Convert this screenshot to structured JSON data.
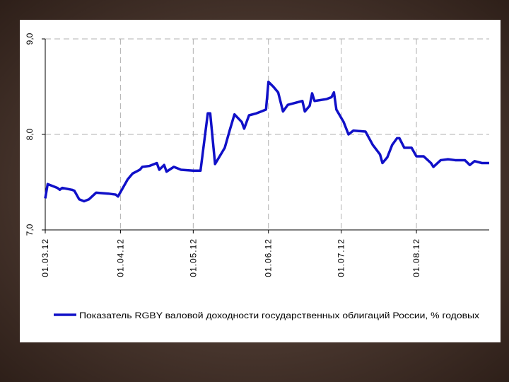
{
  "chart_data": {
    "type": "line",
    "x": [
      "01.03.12",
      "02.03.12",
      "06.03.12",
      "07.03.12",
      "08.03.12",
      "12.03.12",
      "13.03.12",
      "15.03.12",
      "17.03.12",
      "19.03.12",
      "22.03.12",
      "27.03.12",
      "30.03.12",
      "31.03.12",
      "04.04.12",
      "05.04.12",
      "06.04.12",
      "09.04.12",
      "10.04.12",
      "13.04.12",
      "16.04.12",
      "17.04.12",
      "19.04.12",
      "20.04.12",
      "23.04.12",
      "26.04.12",
      "01.05.12",
      "04.05.12",
      "07.05.12",
      "08.05.12",
      "10.05.12",
      "14.05.12",
      "16.05.12",
      "18.05.12",
      "21.05.12",
      "22.05.12",
      "24.05.12",
      "27.05.12",
      "29.05.12",
      "31.05.12",
      "01.06.12",
      "03.06.12",
      "05.06.12",
      "07.06.12",
      "09.06.12",
      "12.06.12",
      "15.06.12",
      "16.06.12",
      "18.06.12",
      "19.06.12",
      "20.06.12",
      "25.06.12",
      "27.06.12",
      "28.06.12",
      "29.06.12",
      "02.07.12",
      "04.07.12",
      "06.07.12",
      "11.07.12",
      "14.07.12",
      "17.07.12",
      "18.07.12",
      "20.07.12",
      "22.07.12",
      "24.07.12",
      "25.07.12",
      "27.07.12",
      "30.07.12",
      "01.08.12",
      "04.08.12",
      "07.08.12",
      "08.08.12",
      "11.08.12",
      "14.08.12",
      "17.08.12",
      "21.08.12",
      "23.08.12",
      "25.08.12",
      "28.08.12",
      "31.08.12"
    ],
    "series": [
      {
        "name": "Показатель RGBY валовой доходности государственных облигаций России, % годовых",
        "color": "#1010c8",
        "values": [
          7.33,
          7.48,
          7.44,
          7.42,
          7.44,
          7.42,
          7.41,
          7.32,
          7.3,
          7.32,
          7.39,
          7.38,
          7.37,
          7.35,
          7.53,
          7.56,
          7.59,
          7.63,
          7.66,
          7.67,
          7.7,
          7.63,
          7.68,
          7.61,
          7.66,
          7.63,
          7.62,
          7.62,
          8.22,
          8.22,
          7.69,
          7.86,
          8.04,
          8.21,
          8.13,
          8.06,
          8.2,
          8.22,
          8.24,
          8.26,
          8.55,
          8.5,
          8.44,
          8.24,
          8.31,
          8.33,
          8.35,
          8.24,
          8.3,
          8.43,
          8.35,
          8.37,
          8.39,
          8.44,
          8.26,
          8.13,
          8.0,
          8.04,
          8.03,
          7.89,
          7.79,
          7.7,
          7.76,
          7.89,
          7.96,
          7.96,
          7.86,
          7.86,
          7.77,
          7.77,
          7.7,
          7.66,
          7.73,
          7.74,
          7.73,
          7.73,
          7.68,
          7.72,
          7.7,
          7.7
        ]
      }
    ],
    "xlim": [
      "01.03.12",
      "31.08.12"
    ],
    "xticks": [
      "01.03.12",
      "01.04.12",
      "01.05.12",
      "01.06.12",
      "01.07.12",
      "01.08.12"
    ],
    "ylim": [
      7,
      9
    ],
    "yticks": [
      {
        "value": 7,
        "label": "7,0"
      },
      {
        "value": 8,
        "label": "8,0"
      },
      {
        "value": 9,
        "label": "9,0"
      }
    ],
    "grid": true
  }
}
